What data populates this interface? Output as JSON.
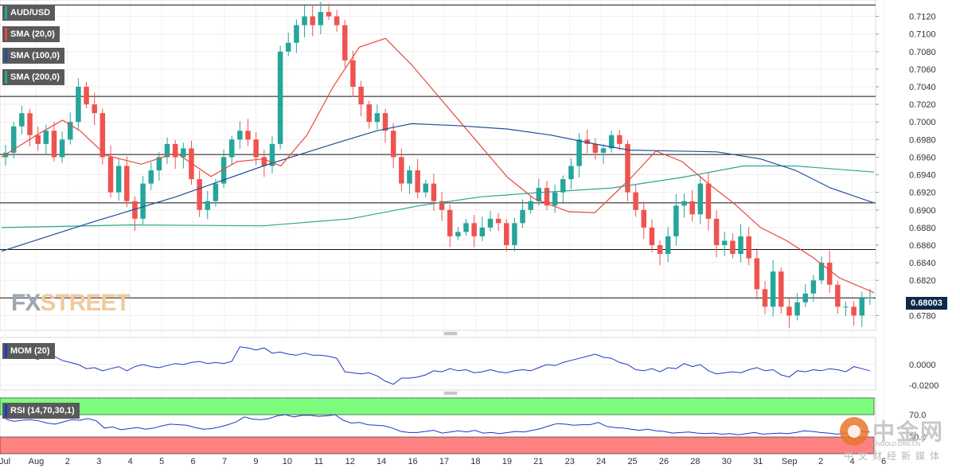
{
  "legends": {
    "symbol": "AUD/USD",
    "sma20": "SMA (20,0)",
    "sma100": "SMA (100,0)",
    "sma200": "SMA (200,0)",
    "mom": "MOM (20)",
    "rsi": "RSI (14,70,30,1)"
  },
  "watermark": {
    "fx": "FX",
    "street": "STREET"
  },
  "logo": {
    "title": "中金网",
    "subtitle": "CNGOLD.ORG.CN",
    "tagline": "中文财经新媒体"
  },
  "current_price": "0.68003",
  "colors": {
    "bull": "#26a69a",
    "bear": "#ef5350",
    "sma20": "#e8493f",
    "sma100": "#1f4e9c",
    "sma200": "#2ca58d",
    "mom": "#2036c9",
    "rsi": "#2036c9",
    "rsi_overbought": "#7dfd7d",
    "rsi_oversold": "#ff8282",
    "axis_text": "#333333"
  },
  "chart_data": [
    {
      "type": "candlestick",
      "title": "AUD/USD",
      "ylim": [
        0.6765,
        0.7135
      ],
      "y_ticks": [
        "0.7120",
        "0.7100",
        "0.7080",
        "0.7060",
        "0.7040",
        "0.7020",
        "0.7000",
        "0.6980",
        "0.6960",
        "0.6940",
        "0.6920",
        "0.6900",
        "0.6880",
        "0.6860",
        "0.6840",
        "0.6820",
        "0.6780"
      ],
      "x_ticks": [
        "Jul",
        "Aug",
        "2",
        "3",
        "4",
        "5",
        "6",
        "7",
        "9",
        "10",
        "11",
        "12",
        "14",
        "16",
        "17",
        "18",
        "19",
        "21",
        "23",
        "24",
        "25",
        "26",
        "28",
        "30",
        "31",
        "Sep",
        "2",
        "4",
        "6"
      ],
      "horizontal_levels": [
        0.7133,
        0.7029,
        0.6963,
        0.6908,
        0.6855,
        0.68
      ],
      "current_price": 0.68003,
      "close_path": [
        0.6965,
        0.6995,
        0.701,
        0.6985,
        0.6975,
        0.699,
        0.696,
        0.698,
        0.7,
        0.704,
        0.702,
        0.701,
        0.696,
        0.692,
        0.695,
        0.691,
        0.689,
        0.693,
        0.6945,
        0.696,
        0.6975,
        0.696,
        0.697,
        0.6935,
        0.69,
        0.691,
        0.693,
        0.696,
        0.698,
        0.699,
        0.698,
        0.696,
        0.695,
        0.6975,
        0.708,
        0.709,
        0.711,
        0.712,
        0.711,
        0.7125,
        0.712,
        0.711,
        0.707,
        0.704,
        0.702,
        0.7,
        0.701,
        0.699,
        0.696,
        0.693,
        0.6945,
        0.692,
        0.693,
        0.691,
        0.69,
        0.687,
        0.6875,
        0.6885,
        0.687,
        0.688,
        0.689,
        0.6885,
        0.686,
        0.6885,
        0.69,
        0.691,
        0.6925,
        0.6905,
        0.692,
        0.6935,
        0.695,
        0.698,
        0.6975,
        0.6965,
        0.697,
        0.6985,
        0.6975,
        0.692,
        0.69,
        0.688,
        0.686,
        0.685,
        0.687,
        0.6905,
        0.691,
        0.6895,
        0.693,
        0.689,
        0.686,
        0.6865,
        0.685,
        0.687,
        0.6845,
        0.681,
        0.679,
        0.683,
        0.679,
        0.678,
        0.6795,
        0.6805,
        0.682,
        0.684,
        0.6815,
        0.679,
        0.679,
        0.678,
        0.68,
        0.68003
      ],
      "sma20": [
        [
          0.0,
          0.696
        ],
        [
          0.04,
          0.6985
        ],
        [
          0.07,
          0.7002
        ],
        [
          0.09,
          0.699
        ],
        [
          0.12,
          0.6962
        ],
        [
          0.16,
          0.6952
        ],
        [
          0.2,
          0.6965
        ],
        [
          0.24,
          0.6938
        ],
        [
          0.27,
          0.6955
        ],
        [
          0.3,
          0.6958
        ],
        [
          0.32,
          0.695
        ],
        [
          0.35,
          0.6985
        ],
        [
          0.38,
          0.704
        ],
        [
          0.41,
          0.7085
        ],
        [
          0.44,
          0.7095
        ],
        [
          0.47,
          0.7065
        ],
        [
          0.5,
          0.703
        ],
        [
          0.53,
          0.6995
        ],
        [
          0.56,
          0.696
        ],
        [
          0.58,
          0.6937
        ],
        [
          0.61,
          0.6913
        ],
        [
          0.65,
          0.6898
        ],
        [
          0.68,
          0.6897
        ],
        [
          0.72,
          0.6935
        ],
        [
          0.75,
          0.6967
        ],
        [
          0.78,
          0.6955
        ],
        [
          0.81,
          0.693
        ],
        [
          0.84,
          0.6907
        ],
        [
          0.87,
          0.688
        ],
        [
          0.9,
          0.6865
        ],
        [
          0.93,
          0.6846
        ],
        [
          0.96,
          0.6823
        ],
        [
          1.0,
          0.6806
        ]
      ],
      "sma100": [
        [
          0.0,
          0.6853
        ],
        [
          0.1,
          0.6885
        ],
        [
          0.2,
          0.6915
        ],
        [
          0.3,
          0.695
        ],
        [
          0.38,
          0.6975
        ],
        [
          0.43,
          0.699
        ],
        [
          0.47,
          0.6998
        ],
        [
          0.52,
          0.6996
        ],
        [
          0.58,
          0.6992
        ],
        [
          0.63,
          0.6985
        ],
        [
          0.68,
          0.6975
        ],
        [
          0.72,
          0.6968
        ],
        [
          0.77,
          0.6967
        ],
        [
          0.82,
          0.6966
        ],
        [
          0.87,
          0.6958
        ],
        [
          0.91,
          0.6945
        ],
        [
          0.95,
          0.6925
        ],
        [
          1.0,
          0.6908
        ]
      ],
      "sma200": [
        [
          0.0,
          0.688
        ],
        [
          0.15,
          0.6883
        ],
        [
          0.3,
          0.6882
        ],
        [
          0.4,
          0.689
        ],
        [
          0.48,
          0.6905
        ],
        [
          0.55,
          0.6915
        ],
        [
          0.62,
          0.692
        ],
        [
          0.7,
          0.6925
        ],
        [
          0.78,
          0.6937
        ],
        [
          0.85,
          0.695
        ],
        [
          0.91,
          0.695
        ],
        [
          1.0,
          0.6943
        ]
      ]
    },
    {
      "type": "line",
      "title": "MOM (20)",
      "y_ticks": [
        "0.0000",
        "-0.0200"
      ],
      "ylim": [
        -0.023,
        0.023
      ],
      "series": [
        {
          "name": "MOM (20)",
          "values": [
            0.008,
            0.006,
            0.009,
            0.007,
            0.005,
            0.009,
            0.008,
            0.004,
            0.002,
            0.0,
            -0.004,
            -0.003,
            -0.006,
            -0.004,
            -0.002,
            -0.006,
            -0.002,
            0.0,
            -0.002,
            -0.003,
            -0.001,
            0.001,
            0.0,
            0.002,
            0.003,
            0.001,
            0.002,
            0.001,
            0.003,
            0.017,
            0.016,
            0.014,
            0.016,
            0.011,
            0.012,
            0.01,
            0.009,
            0.011,
            0.009,
            0.009,
            0.008,
            0.006,
            -0.007,
            -0.008,
            -0.009,
            -0.008,
            -0.011,
            -0.016,
            -0.019,
            -0.013,
            -0.013,
            -0.012,
            -0.01,
            -0.006,
            -0.007,
            -0.004,
            -0.006,
            -0.005,
            -0.008,
            -0.007,
            -0.005,
            -0.007,
            -0.008,
            -0.006,
            -0.005,
            -0.006,
            -0.003,
            0.0,
            -0.001,
            0.002,
            0.004,
            0.006,
            0.008,
            0.01,
            0.007,
            0.006,
            0.002,
            0.0,
            -0.005,
            -0.006,
            -0.004,
            -0.007,
            -0.003,
            -0.004,
            0.001,
            -0.002,
            0.0,
            -0.006,
            -0.009,
            -0.008,
            -0.007,
            -0.008,
            -0.005,
            -0.003,
            -0.006,
            -0.005,
            -0.01,
            -0.012,
            -0.006,
            -0.007,
            -0.005,
            -0.006,
            -0.004,
            -0.005,
            -0.007,
            -0.002,
            -0.004,
            -0.006
          ]
        }
      ]
    },
    {
      "type": "line",
      "title": "RSI (14,70,30,1)",
      "y_ticks": [
        "70.0",
        "30.0"
      ],
      "ylim": [
        0,
        100
      ],
      "bands": {
        "overbought": 70,
        "oversold": 30
      },
      "series": [
        {
          "name": "RSI (14,70,30,1)",
          "values": [
            62,
            58,
            60,
            61,
            59,
            55,
            53,
            57,
            61,
            60,
            63,
            59,
            46,
            48,
            43,
            45,
            47,
            44,
            46,
            50,
            53,
            52,
            51,
            47,
            44,
            45,
            48,
            52,
            57,
            66,
            62,
            61,
            63,
            68,
            70,
            66,
            69,
            69,
            67,
            68,
            70,
            60,
            55,
            56,
            52,
            51,
            50,
            46,
            40,
            38,
            38,
            40,
            42,
            37,
            39,
            41,
            39,
            42,
            37,
            38,
            36,
            38,
            40,
            39,
            42,
            45,
            50,
            54,
            53,
            51,
            52,
            52,
            56,
            49,
            47,
            46,
            44,
            42,
            44,
            41,
            40,
            37,
            38,
            39,
            37,
            36,
            37,
            35,
            36,
            34,
            36,
            38,
            35,
            36,
            37,
            36,
            38,
            41,
            40,
            38,
            37,
            35,
            37,
            36,
            40,
            39
          ]
        }
      ]
    }
  ]
}
